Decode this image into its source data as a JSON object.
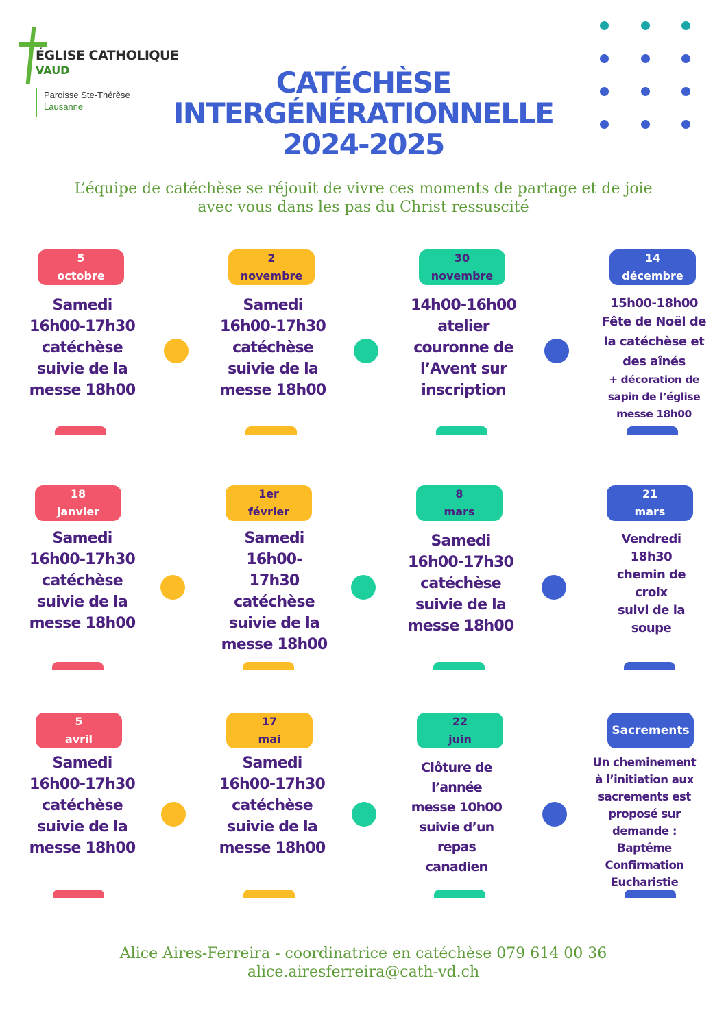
{
  "logo": {
    "line1": "ÉGLISE CATHOLIQUE",
    "line2": "VAUD",
    "parish": "Paroisse Ste-Thérèse",
    "city": "Lausanne"
  },
  "title": {
    "line1": "CATÉCHÈSE",
    "line2": "INTERGÉNÉRATIONNELLE",
    "line3": "2024-2025"
  },
  "intro": {
    "line1": "L’équipe de catéchèse se réjouit de vivre ces moments de partage et de joie",
    "line2": "avec vous dans les pas du Christ ressuscité"
  },
  "colors": {
    "red": "#f2566a",
    "yellow": "#fbbc25",
    "teal": "#1ccf9c",
    "blue": "#3e5fd0",
    "purple": "#4b2180",
    "green": "#5f9c3a",
    "dot_teal": "#1ba6a8",
    "dot_blue": "#3e5fd0"
  },
  "events": [
    {
      "date1": "5",
      "date2": "octobre",
      "lines": [
        "Samedi",
        "16h00-17h30",
        "catéchèse",
        "suivie de la",
        "messe 18h00"
      ]
    },
    {
      "date1": "2",
      "date2": "novembre",
      "lines": [
        "Samedi",
        "16h00-17h30",
        "catéchèse",
        "suivie de la",
        "messe 18h00"
      ]
    },
    {
      "date1": "30",
      "date2": "novembre",
      "lines": [
        "14h00-16h00",
        "atelier",
        "couronne de",
        "l’Avent sur",
        "inscription"
      ]
    },
    {
      "date1": "14",
      "date2": "décembre",
      "lines": [
        "15h00-18h00",
        "Fête de Noël de",
        "la catéchèse et",
        "des aînés",
        "+ décoration de",
        "sapin de l’église",
        "messe 18h00"
      ]
    },
    {
      "date1": "18",
      "date2": "janvier",
      "lines": [
        "Samedi",
        "16h00-17h30",
        "catéchèse",
        "suivie de la",
        "messe 18h00"
      ]
    },
    {
      "date1": "1er",
      "date2": "février",
      "lines": [
        "Samedi",
        "16h00-",
        "17h30",
        "catéchèse",
        "suivie de la",
        "messe 18h00"
      ]
    },
    {
      "date1": "8",
      "date2": "mars",
      "lines": [
        "Samedi",
        "16h00-17h30",
        "catéchèse",
        "suivie de la",
        "messe 18h00"
      ]
    },
    {
      "date1": "21",
      "date2": "mars",
      "lines": [
        "Vendredi",
        "18h30",
        "chemin de",
        "croix",
        "suivi de la",
        "soupe"
      ]
    },
    {
      "date1": "5",
      "date2": "avril",
      "lines": [
        "Samedi",
        "16h00-17h30",
        "catéchèse",
        "suivie de la",
        "messe 18h00"
      ]
    },
    {
      "date1": "17",
      "date2": "mai",
      "lines": [
        "Samedi",
        "16h00-17h30",
        "catéchèse",
        "suivie de la",
        "messe 18h00"
      ]
    },
    {
      "date1": "22",
      "date2": "juin",
      "lines": [
        "Clôture de",
        "l’année",
        "messe 10h00",
        "suivie d’un",
        "repas",
        "canadien"
      ]
    },
    {
      "date1": "Sacrements",
      "date2": "",
      "lines": [
        "Un cheminement",
        "à l’initiation aux",
        "sacrements est",
        "proposé sur",
        "demande :",
        "Baptême",
        "Confirmation",
        "Eucharistie"
      ]
    }
  ],
  "contact": {
    "line1": "Alice Aires-Ferreira - coordinatrice en catéchèse 079 614 00 36",
    "line2": "alice.airesferreira@cath-vd.ch"
  }
}
